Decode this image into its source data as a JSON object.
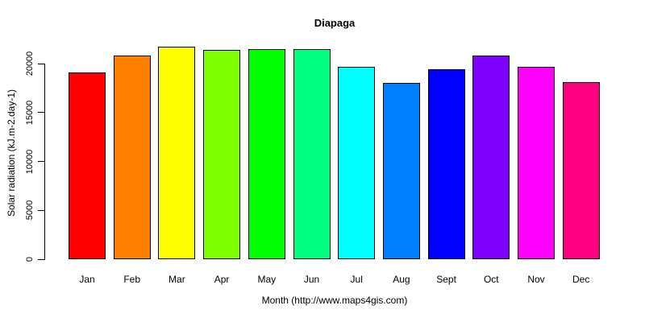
{
  "chart_data": {
    "type": "bar",
    "title": "Diapaga",
    "xlabel": "Month (http://www.maps4gis.com)",
    "ylabel": "Solar radiation (kJ.m-2.day-1)",
    "categories": [
      "Jan",
      "Feb",
      "Mar",
      "Apr",
      "May",
      "Jun",
      "Jul",
      "Aug",
      "Sept",
      "Oct",
      "Nov",
      "Dec"
    ],
    "values": [
      19100,
      20850,
      21700,
      21400,
      21500,
      21450,
      19700,
      18050,
      19400,
      20800,
      19650,
      18100
    ],
    "bar_colors": [
      "#FF0000",
      "#FF8000",
      "#FFFF00",
      "#80FF00",
      "#00FF00",
      "#00FF80",
      "#00FFFF",
      "#0080FF",
      "#0000FF",
      "#8000FF",
      "#FF00FF",
      "#FF0080"
    ],
    "yticks": [
      0,
      5000,
      10000,
      15000,
      20000
    ],
    "ylim": [
      0,
      21700
    ],
    "axis_max_tick": 20000,
    "grid": false,
    "legend": "none",
    "bar_border_color": "#000000",
    "text_color": "#000000",
    "background_color": "#FFFFFF"
  }
}
